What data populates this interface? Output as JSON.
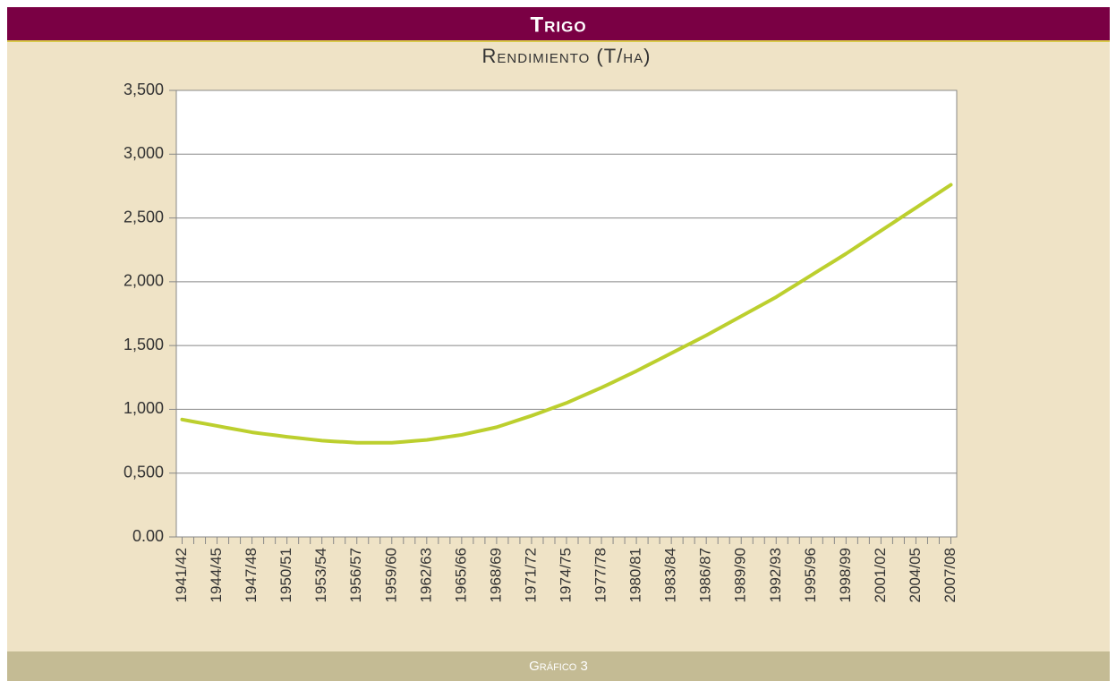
{
  "chart_data": {
    "type": "line",
    "title": "Trigo",
    "subtitle": "Rendimiento (T/ha)",
    "caption": "Gráfico 3",
    "categories": [
      "1941/42",
      null,
      null,
      "1944/45",
      null,
      null,
      "1947/48",
      null,
      null,
      "1950/51",
      null,
      null,
      "1953/54",
      null,
      null,
      "1956/57",
      null,
      null,
      "1959/60",
      null,
      null,
      "1962/63",
      null,
      null,
      "1965/66",
      null,
      null,
      "1968/69",
      null,
      null,
      "1971/72",
      null,
      null,
      "1974/75",
      null,
      null,
      "1977/78",
      null,
      null,
      "1980/81",
      null,
      null,
      "1983/84",
      null,
      null,
      "1986/87",
      null,
      null,
      "1989/90",
      null,
      null,
      "1992/93",
      null,
      null,
      "1995/96",
      null,
      null,
      "1998/99",
      null,
      null,
      "2001/02",
      null,
      null,
      "2004/05",
      null,
      null,
      "2007/08"
    ],
    "series": [
      {
        "name": "Rendimiento",
        "color": "#bccf2e",
        "values": [
          0.92,
          0.903,
          0.887,
          0.87,
          0.853,
          0.837,
          0.82,
          0.808,
          0.797,
          0.785,
          0.775,
          0.765,
          0.755,
          0.749,
          0.744,
          0.738,
          0.738,
          0.738,
          0.738,
          0.745,
          0.753,
          0.76,
          0.773,
          0.787,
          0.8,
          0.82,
          0.84,
          0.86,
          0.89,
          0.92,
          0.95,
          0.983,
          1.017,
          1.05,
          1.09,
          1.13,
          1.17,
          1.213,
          1.257,
          1.3,
          1.347,
          1.393,
          1.44,
          1.487,
          1.533,
          1.58,
          1.63,
          1.68,
          1.73,
          1.78,
          1.83,
          1.88,
          1.937,
          1.993,
          2.05,
          2.107,
          2.163,
          2.22,
          2.28,
          2.34,
          2.4,
          2.46,
          2.52,
          2.58,
          2.64,
          2.7,
          2.76
        ]
      }
    ],
    "ylim": [
      0,
      3.5
    ],
    "yticks": [
      {
        "value": 0,
        "label": "0.00"
      },
      {
        "value": 0.5,
        "label": "0,500"
      },
      {
        "value": 1,
        "label": "1,000"
      },
      {
        "value": 1.5,
        "label": "1,500"
      },
      {
        "value": 2,
        "label": "2,000"
      },
      {
        "value": 2.5,
        "label": "2,500"
      },
      {
        "value": 3,
        "label": "3,000"
      },
      {
        "value": 3.5,
        "label": "3,500"
      }
    ],
    "grid": true
  }
}
